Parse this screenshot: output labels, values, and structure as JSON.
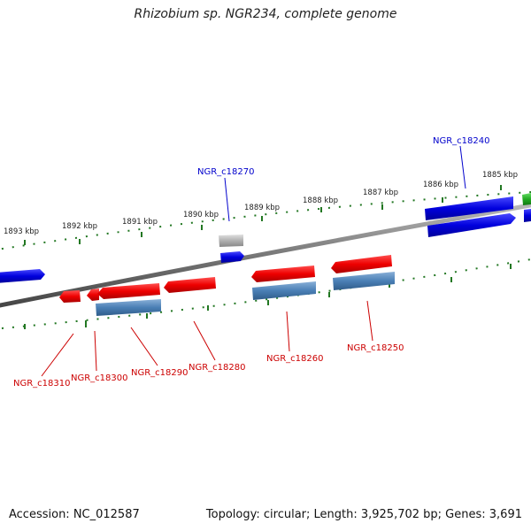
{
  "header": {
    "title": "Rhizobium sp. NGR234, complete genome"
  },
  "footer": {
    "accession": "Accession: NC_012587",
    "stats": "Topology: circular; Length: 3,925,702 bp; Genes: 3,691"
  },
  "scale": {
    "ticks": [
      "1893 kbp",
      "1892 kbp",
      "1891 kbp",
      "1890 kbp",
      "1889 kbp",
      "1888 kbp",
      "1887 kbp",
      "1886 kbp",
      "1885 kbp"
    ]
  },
  "gene_labels": {
    "top": [
      "NGR_c18270",
      "NGR_c18240"
    ],
    "bottom": [
      "NGR_c18310",
      "NGR_c18300",
      "NGR_c18290",
      "NGR_c18280",
      "NGR_c18260",
      "NGR_c18250"
    ]
  },
  "colors": {
    "forward_gene": "#0000dd",
    "reverse_gene": "#dd0000",
    "blast_hit": "#4a7fb5",
    "pseudo_gene": "#b0b0b0",
    "rna_gene": "#22aa22",
    "tick_mark": "#227722",
    "backbone": "#777777"
  }
}
